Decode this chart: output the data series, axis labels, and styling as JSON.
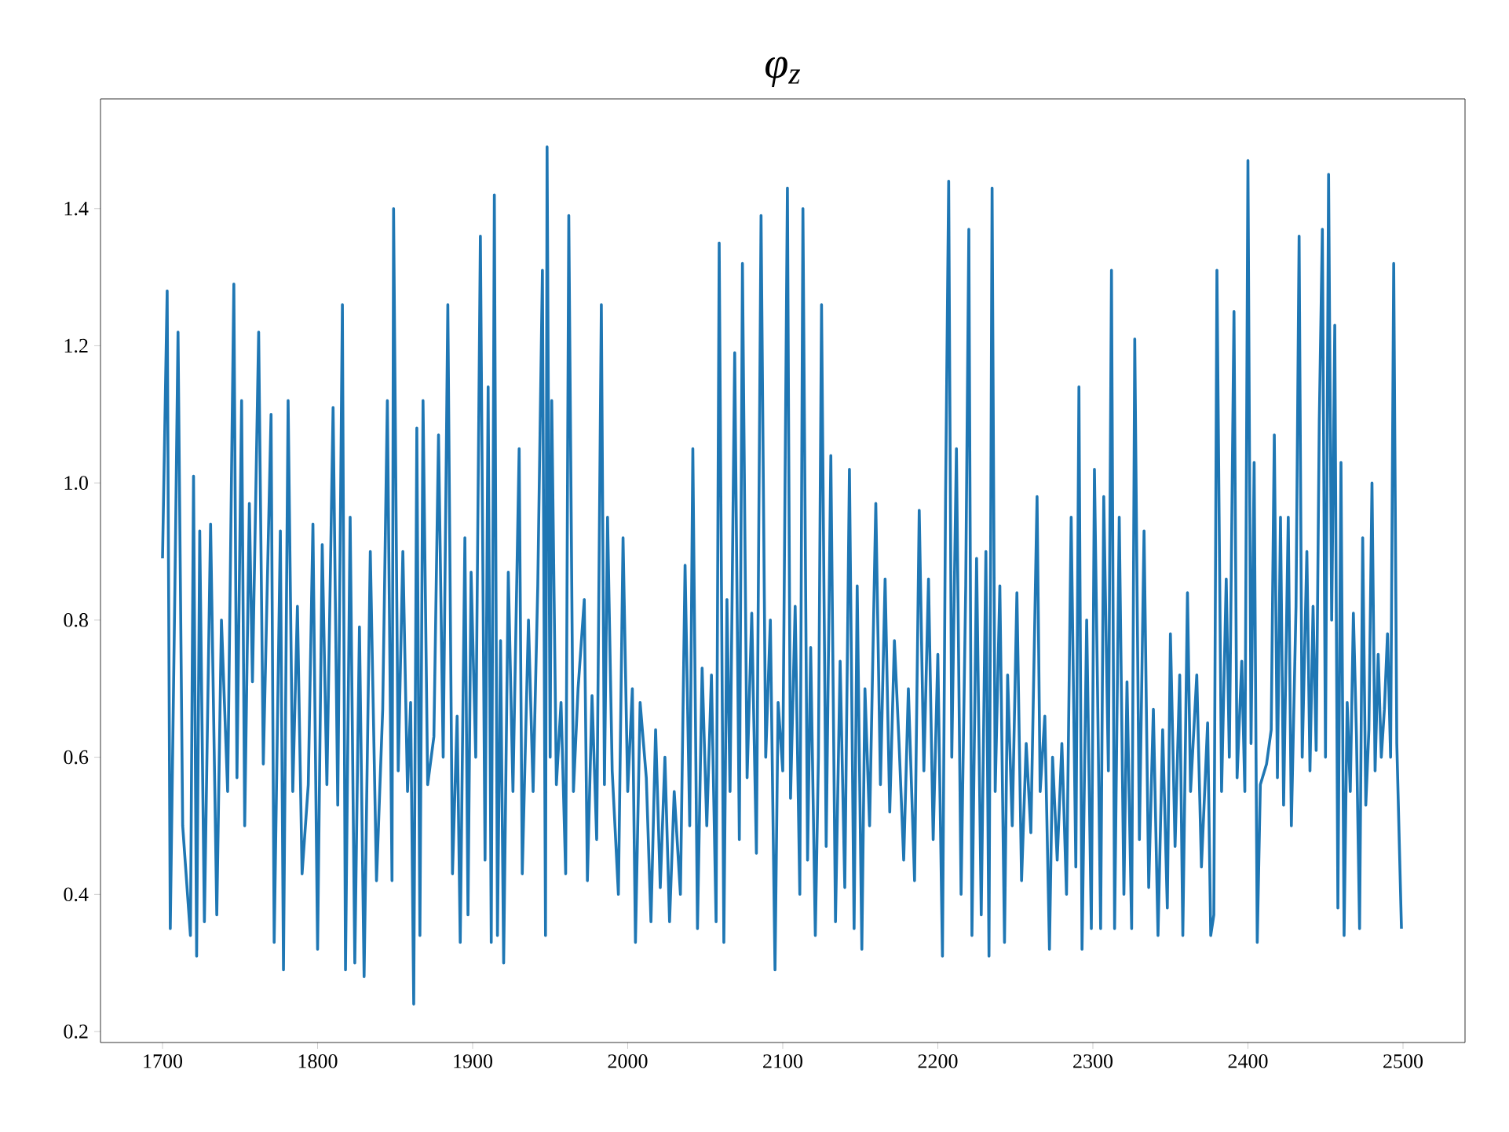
{
  "chart_data": {
    "type": "line",
    "title": "φ$_{z}$",
    "x": [
      1700,
      1703,
      1705,
      1708,
      1710,
      1713,
      1718,
      1720,
      1722,
      1724,
      1727,
      1731,
      1735,
      1738,
      1742,
      1746,
      1748,
      1751,
      1753,
      1756,
      1758,
      1762,
      1765,
      1770,
      1772,
      1776,
      1778,
      1781,
      1784,
      1787,
      1790,
      1794,
      1797,
      1800,
      1803,
      1806,
      1810,
      1813,
      1816,
      1818,
      1821,
      1824,
      1827,
      1830,
      1834,
      1838,
      1842,
      1845,
      1848,
      1849,
      1852,
      1855,
      1858,
      1860,
      1862,
      1864,
      1866,
      1868,
      1871,
      1875,
      1878,
      1881,
      1884,
      1887,
      1890,
      1892,
      1895,
      1897,
      1899,
      1902,
      1905,
      1908,
      1910,
      1912,
      1914,
      1916,
      1918,
      1920,
      1923,
      1926,
      1930,
      1932,
      1936,
      1939,
      1942,
      1945,
      1947,
      1948,
      1950,
      1951,
      1954,
      1957,
      1960,
      1962,
      1965,
      1968,
      1972,
      1974,
      1977,
      1980,
      1983,
      1985,
      1987,
      1990,
      1994,
      1997,
      2000,
      2003,
      2005,
      2008,
      2012,
      2015,
      2018,
      2021,
      2024,
      2027,
      2030,
      2034,
      2037,
      2040,
      2042,
      2045,
      2048,
      2051,
      2054,
      2057,
      2059,
      2062,
      2064,
      2066,
      2069,
      2072,
      2074,
      2077,
      2080,
      2083,
      2086,
      2089,
      2092,
      2095,
      2097,
      2100,
      2103,
      2105,
      2108,
      2111,
      2113,
      2116,
      2118,
      2121,
      2123,
      2125,
      2128,
      2131,
      2134,
      2137,
      2140,
      2143,
      2146,
      2148,
      2151,
      2153,
      2156,
      2160,
      2163,
      2166,
      2169,
      2172,
      2175,
      2178,
      2181,
      2185,
      2188,
      2191,
      2194,
      2197,
      2200,
      2203,
      2205,
      2207,
      2209,
      2212,
      2215,
      2218,
      2220,
      2222,
      2225,
      2228,
      2231,
      2233,
      2235,
      2237,
      2240,
      2243,
      2245,
      2248,
      2251,
      2254,
      2257,
      2260,
      2264,
      2266,
      2269,
      2272,
      2274,
      2277,
      2280,
      2283,
      2286,
      2289,
      2291,
      2293,
      2296,
      2299,
      2301,
      2303,
      2305,
      2307,
      2310,
      2312,
      2314,
      2317,
      2320,
      2322,
      2325,
      2327,
      2330,
      2333,
      2336,
      2339,
      2342,
      2345,
      2348,
      2350,
      2353,
      2356,
      2358,
      2361,
      2363,
      2367,
      2370,
      2374,
      2376,
      2378,
      2380,
      2383,
      2386,
      2388,
      2391,
      2393,
      2396,
      2398,
      2400,
      2402,
      2404,
      2406,
      2408,
      2412,
      2415,
      2417,
      2419,
      2421,
      2423,
      2426,
      2428,
      2431,
      2433,
      2435,
      2438,
      2440,
      2442,
      2444,
      2446,
      2448,
      2450,
      2452,
      2454,
      2456,
      2458,
      2460,
      2462,
      2464,
      2466,
      2468,
      2470,
      2472,
      2474,
      2476,
      2478,
      2480,
      2482,
      2484,
      2486,
      2488,
      2490,
      2492,
      2494,
      2496,
      2499
    ],
    "series": [
      {
        "color": "#1f77b4",
        "values": [
          0.89,
          1.28,
          0.35,
          0.85,
          1.22,
          0.5,
          0.34,
          1.01,
          0.31,
          0.93,
          0.36,
          0.94,
          0.37,
          0.8,
          0.55,
          1.29,
          0.57,
          1.12,
          0.5,
          0.97,
          0.71,
          1.22,
          0.59,
          1.1,
          0.33,
          0.93,
          0.29,
          1.12,
          0.55,
          0.82,
          0.43,
          0.56,
          0.94,
          0.32,
          0.91,
          0.56,
          1.11,
          0.53,
          1.26,
          0.29,
          0.95,
          0.3,
          0.79,
          0.28,
          0.9,
          0.42,
          0.67,
          1.12,
          0.42,
          1.4,
          0.58,
          0.9,
          0.55,
          0.68,
          0.24,
          1.08,
          0.34,
          1.12,
          0.56,
          0.63,
          1.07,
          0.6,
          1.26,
          0.43,
          0.66,
          0.33,
          0.92,
          0.37,
          0.87,
          0.6,
          1.36,
          0.45,
          1.14,
          0.33,
          1.42,
          0.34,
          0.77,
          0.3,
          0.87,
          0.55,
          1.05,
          0.43,
          0.8,
          0.55,
          0.85,
          1.31,
          0.34,
          1.49,
          0.6,
          1.12,
          0.56,
          0.68,
          0.43,
          1.39,
          0.55,
          0.7,
          0.83,
          0.42,
          0.69,
          0.48,
          1.26,
          0.56,
          0.95,
          0.58,
          0.4,
          0.92,
          0.55,
          0.7,
          0.33,
          0.68,
          0.57,
          0.36,
          0.64,
          0.41,
          0.6,
          0.36,
          0.55,
          0.4,
          0.88,
          0.5,
          1.05,
          0.35,
          0.73,
          0.5,
          0.72,
          0.36,
          1.35,
          0.33,
          0.83,
          0.55,
          1.19,
          0.48,
          1.32,
          0.57,
          0.81,
          0.46,
          1.39,
          0.6,
          0.8,
          0.29,
          0.68,
          0.58,
          1.43,
          0.54,
          0.82,
          0.4,
          1.4,
          0.45,
          0.76,
          0.34,
          0.6,
          1.26,
          0.47,
          1.04,
          0.36,
          0.74,
          0.41,
          1.02,
          0.35,
          0.85,
          0.32,
          0.7,
          0.5,
          0.97,
          0.56,
          0.86,
          0.52,
          0.77,
          0.62,
          0.45,
          0.7,
          0.42,
          0.96,
          0.58,
          0.86,
          0.48,
          0.75,
          0.31,
          0.98,
          1.44,
          0.6,
          1.05,
          0.4,
          0.85,
          1.37,
          0.34,
          0.89,
          0.37,
          0.9,
          0.31,
          1.43,
          0.55,
          0.85,
          0.33,
          0.72,
          0.5,
          0.84,
          0.42,
          0.62,
          0.49,
          0.98,
          0.55,
          0.66,
          0.32,
          0.6,
          0.45,
          0.62,
          0.4,
          0.95,
          0.44,
          1.14,
          0.32,
          0.8,
          0.35,
          1.02,
          0.7,
          0.35,
          0.98,
          0.58,
          1.31,
          0.35,
          0.95,
          0.4,
          0.71,
          0.35,
          1.21,
          0.48,
          0.93,
          0.41,
          0.67,
          0.34,
          0.64,
          0.38,
          0.78,
          0.47,
          0.72,
          0.34,
          0.84,
          0.55,
          0.72,
          0.44,
          0.65,
          0.34,
          0.37,
          1.31,
          0.55,
          0.86,
          0.6,
          1.25,
          0.57,
          0.74,
          0.55,
          1.47,
          0.62,
          1.03,
          0.33,
          0.56,
          0.59,
          0.64,
          1.07,
          0.57,
          0.95,
          0.53,
          0.95,
          0.5,
          0.82,
          1.36,
          0.6,
          0.9,
          0.58,
          0.82,
          0.61,
          1.09,
          1.37,
          0.6,
          1.45,
          0.8,
          1.23,
          0.38,
          1.03,
          0.34,
          0.68,
          0.55,
          0.81,
          0.63,
          0.35,
          0.92,
          0.53,
          0.64,
          1.0,
          0.58,
          0.75,
          0.6,
          0.67,
          0.78,
          0.6,
          1.32,
          0.62,
          0.35
        ]
      }
    ],
    "xlim": [
      1660,
      2540
    ],
    "ylim": [
      0.184,
      1.56
    ],
    "xticks": [
      1700,
      1800,
      1900,
      2000,
      2100,
      2200,
      2300,
      2400,
      2500
    ],
    "yticks": [
      {
        "value": 0.2,
        "label": "0.2"
      },
      {
        "value": 0.4,
        "label": "0.4"
      },
      {
        "value": 0.6,
        "label": "0.6"
      },
      {
        "value": 0.8,
        "label": "0.8"
      },
      {
        "value": 1.0,
        "label": "1.0"
      },
      {
        "value": 1.2,
        "label": "1.2"
      },
      {
        "value": 1.4,
        "label": "1.4"
      }
    ],
    "marker": "none",
    "line_style": "solid",
    "grid": false
  }
}
